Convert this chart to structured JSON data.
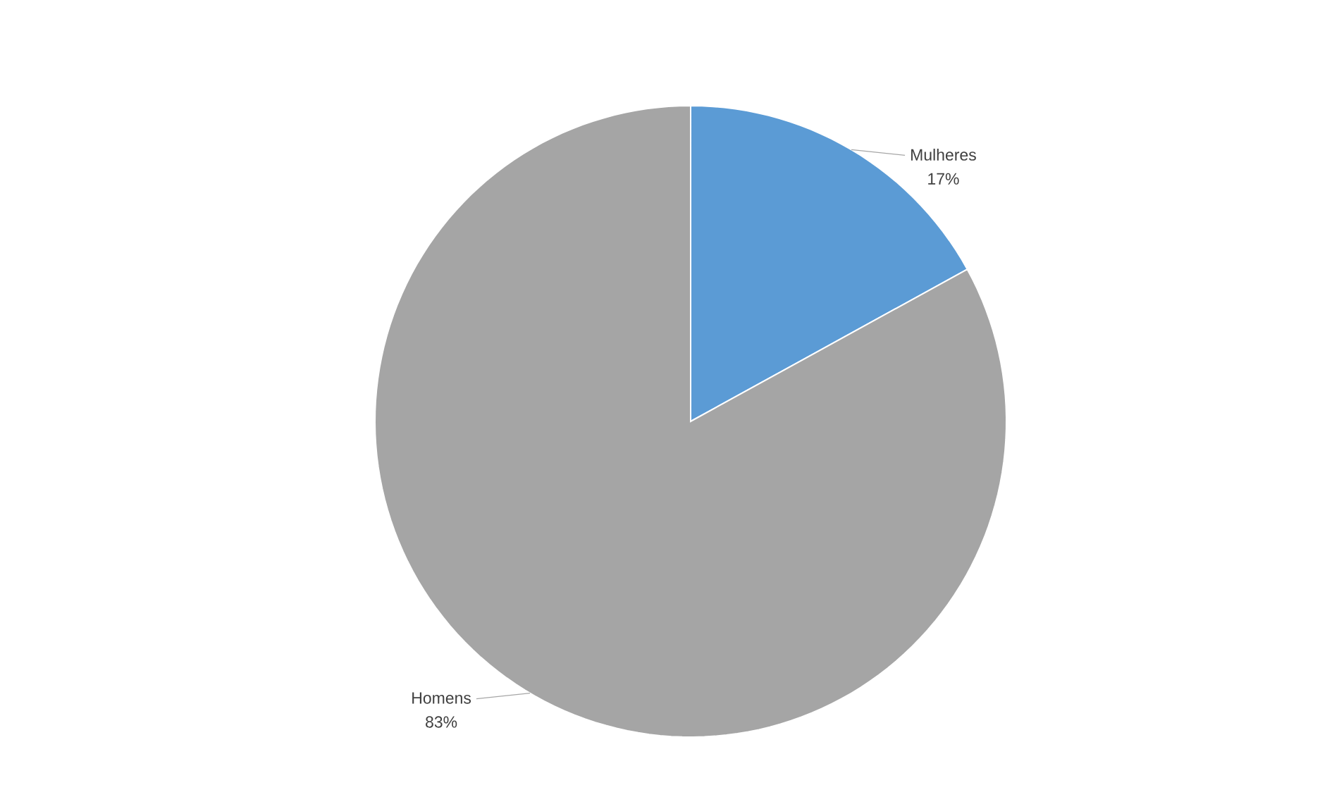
{
  "chart_data": {
    "type": "pie",
    "categories": [
      "Mulheres",
      "Homens"
    ],
    "values": [
      17,
      83
    ],
    "value_labels": [
      "17%",
      "83%"
    ],
    "colors": [
      "#5b9bd5",
      "#a5a5a5"
    ]
  }
}
